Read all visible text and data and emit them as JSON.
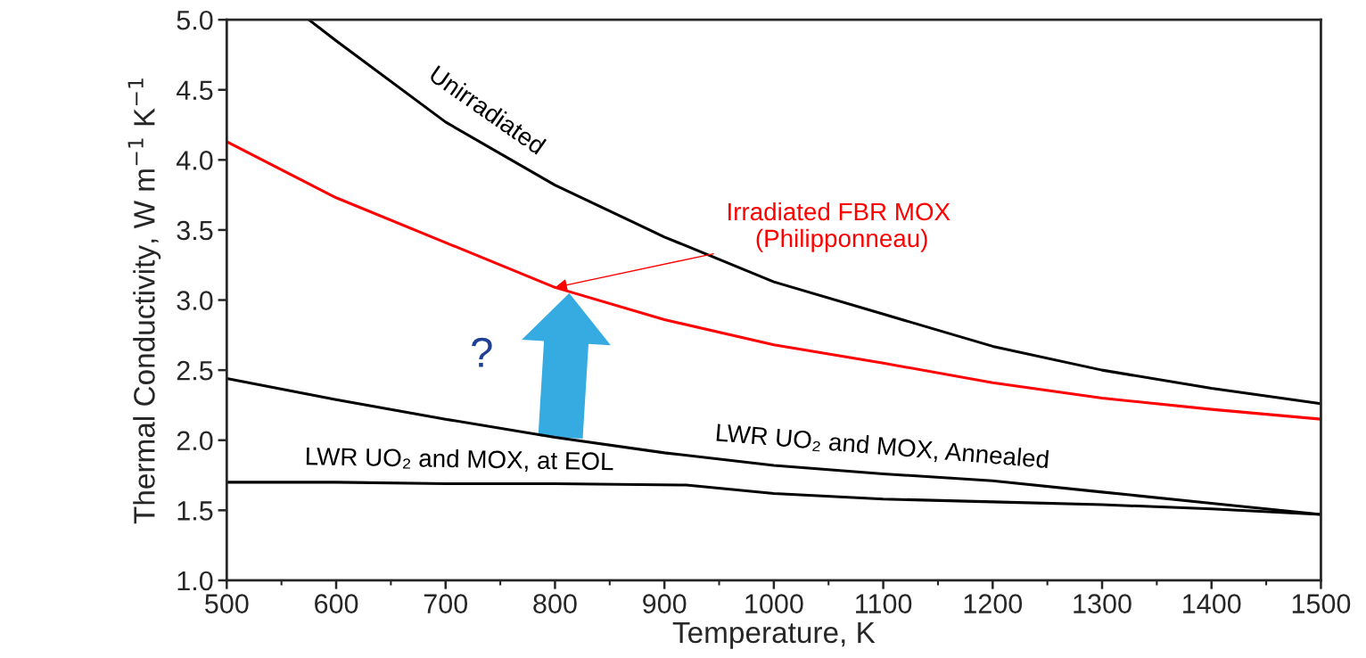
{
  "chart_data": {
    "type": "line",
    "xlabel": "Temperature, K",
    "ylabel": "Thermal Conductivity, W m$^{−1}$ K$^{−1}$",
    "series": [
      {
        "color": "#000000",
        "x": [
          575,
          600,
          700,
          800,
          900,
          1000,
          1100,
          1200,
          1300,
          1400,
          1500
        ],
        "values": [
          5.0,
          4.85,
          4.27,
          3.82,
          3.45,
          3.13,
          2.9,
          2.67,
          2.5,
          2.37,
          2.26
        ]
      },
      {
        "color": "#ff0000",
        "x": [
          500,
          600,
          700,
          800,
          900,
          1000,
          1100,
          1200,
          1300,
          1400,
          1500
        ],
        "values": [
          4.13,
          3.73,
          3.41,
          3.09,
          2.86,
          2.68,
          2.55,
          2.41,
          2.3,
          2.22,
          2.15
        ]
      },
      {
        "color": "#000000",
        "x": [
          500,
          600,
          700,
          800,
          900,
          1000,
          1100,
          1200,
          1300,
          1400,
          1500
        ],
        "values": [
          2.44,
          2.29,
          2.15,
          2.02,
          1.91,
          1.82,
          1.76,
          1.71,
          1.63,
          1.55,
          1.47
        ]
      },
      {
        "color": "#000000",
        "x": [
          500,
          600,
          700,
          800,
          920,
          1000,
          1100,
          1200,
          1300,
          1400,
          1500
        ],
        "values": [
          1.7,
          1.7,
          1.69,
          1.69,
          1.68,
          1.62,
          1.58,
          1.56,
          1.54,
          1.51,
          1.47
        ]
      }
    ],
    "annotations": [
      "Unirradiated",
      {
        "text": "Irradiated FBR MOX\n (Philipponneau)",
        "x": 800,
        "y": 3.09
      },
      "?",
      "LWR UO₂ and MOX, Annealed",
      "LWR UO₂ and MOX, at EOL"
    ],
    "xlim": [
      500,
      1500
    ],
    "xticks": [
      500,
      600,
      700,
      800,
      900,
      1000,
      1100,
      1200,
      1300,
      1400,
      1500
    ],
    "ylim": [
      1.0,
      5.0
    ],
    "yticks": [
      {
        "value": 1,
        "label": "1.0"
      },
      1.5,
      {
        "value": 2,
        "label": "2.0"
      },
      2.5,
      {
        "value": 3,
        "label": "3.0"
      },
      3.5,
      {
        "value": 4,
        "label": "4.0"
      },
      4.5,
      {
        "value": 5,
        "label": "5.0"
      }
    ],
    "grid": false,
    "legend": false,
    "marker": "none",
    "line_style": "solid"
  }
}
